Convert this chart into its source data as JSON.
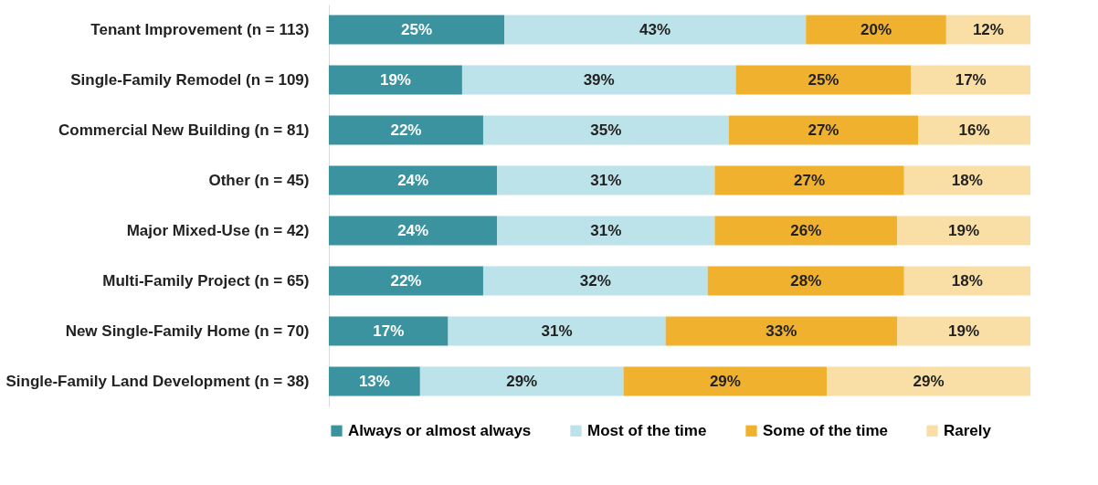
{
  "chart_data": {
    "type": "bar",
    "orientation": "horizontal",
    "stacked": true,
    "legend": "bottom",
    "grid": false,
    "tick_labels": "y",
    "categories": [
      "Tenant Improvement (n = 113)",
      "Single-Family Remodel (n = 109)",
      "Commercial New Building (n = 81)",
      "Other (n = 45)",
      "Major Mixed-Use (n = 42)",
      "Multi-Family Project (n = 65)",
      "New Single-Family Home (n = 70)",
      "Single-Family Land Development (n = 38)"
    ],
    "series": [
      {
        "name": "Always or almost always",
        "color": "#3a939f",
        "values": [
          25,
          19,
          22,
          24,
          24,
          22,
          17,
          13
        ],
        "value_labels": [
          "25%",
          "19%",
          "22%",
          "24%",
          "24%",
          "22%",
          "17%",
          "13%"
        ]
      },
      {
        "name": "Most of the time",
        "color": "#bce3e9",
        "values": [
          43,
          39,
          35,
          31,
          31,
          32,
          31,
          29
        ],
        "value_labels": [
          "43%",
          "39%",
          "35%",
          "31%",
          "31%",
          "32%",
          "31%",
          "29%"
        ]
      },
      {
        "name": "Some of the time",
        "color": "#f0b12f",
        "values": [
          20,
          25,
          27,
          27,
          26,
          28,
          33,
          29
        ],
        "value_labels": [
          "20%",
          "25%",
          "27%",
          "27%",
          "26%",
          "28%",
          "33%",
          "29%"
        ]
      },
      {
        "name": "Rarely",
        "color": "#f9dfa6",
        "values": [
          12,
          17,
          16,
          18,
          19,
          18,
          19,
          29
        ],
        "value_labels": [
          "12%",
          "17%",
          "16%",
          "18%",
          "19%",
          "18%",
          "19%",
          "29%"
        ]
      }
    ]
  }
}
